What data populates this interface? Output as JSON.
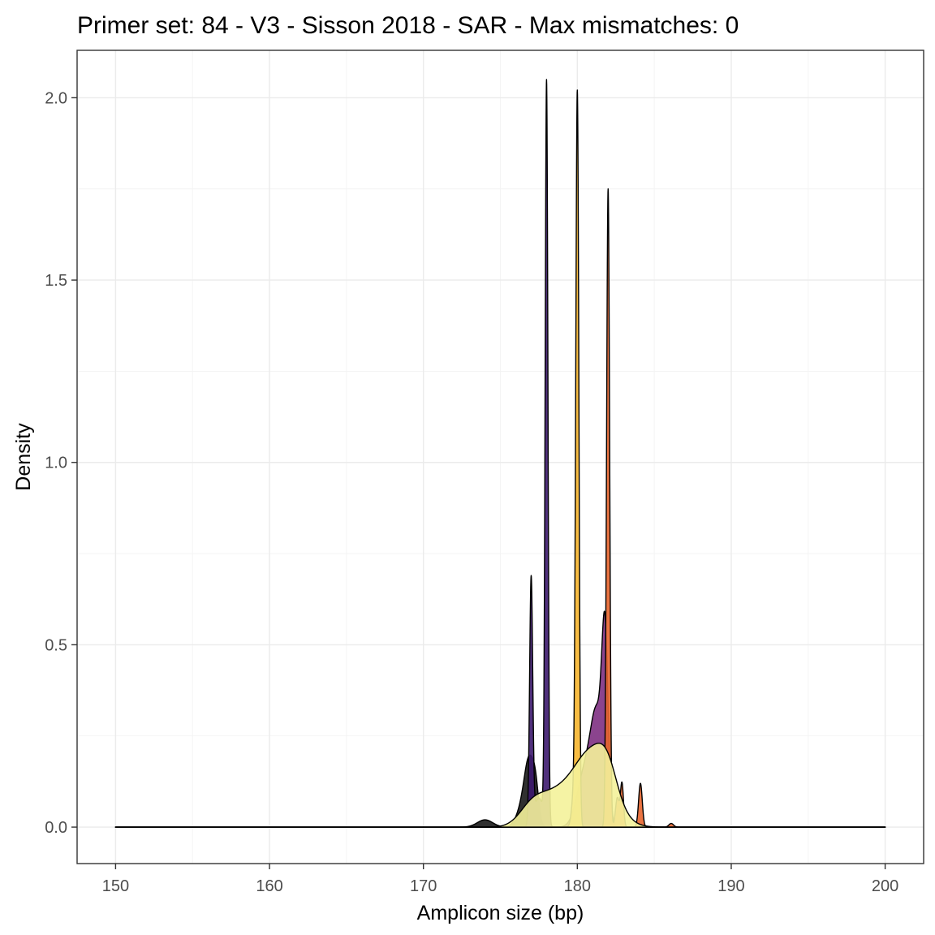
{
  "chart_data": {
    "type": "area",
    "title": "Primer set: 84 - V3 - Sisson 2018 - SAR - Max mismatches: 0",
    "xlabel": "Amplicon size (bp)",
    "ylabel": "Density",
    "xlim": [
      147.5,
      202.5
    ],
    "ylim": [
      -0.1,
      2.13
    ],
    "x_ticks": [
      150,
      160,
      170,
      180,
      190,
      200
    ],
    "x_tick_labels": [
      "150",
      "160",
      "170",
      "180",
      "190",
      "200"
    ],
    "y_ticks": [
      0.0,
      0.5,
      1.0,
      1.5,
      2.0
    ],
    "y_tick_labels": [
      "0.0",
      "0.5",
      "1.0",
      "1.5",
      "2.0"
    ],
    "grid": true,
    "legend": "none",
    "x_range": [
      150,
      200
    ],
    "series": [
      {
        "color": "#1a1a1a",
        "opacity": 0.9,
        "peaks": [
          {
            "center": 174.0,
            "height": 0.02,
            "width": 0.5
          },
          {
            "center": 176.9,
            "height": 0.15,
            "width": 0.3
          },
          {
            "center": 177.3,
            "height": 0.08,
            "width": 0.2
          },
          {
            "center": 176.5,
            "height": 0.06,
            "width": 0.4
          }
        ]
      },
      {
        "color": "#3d1a6e",
        "opacity": 0.9,
        "peaks": [
          {
            "center": 177.0,
            "height": 0.67,
            "width": 0.1
          },
          {
            "center": 178.0,
            "height": 2.03,
            "width": 0.09
          },
          {
            "center": 177.5,
            "height": 0.08,
            "width": 0.3
          }
        ]
      },
      {
        "color": "#7b2a7e",
        "opacity": 0.88,
        "peaks": [
          {
            "center": 181.3,
            "height": 0.28,
            "width": 0.4
          },
          {
            "center": 181.8,
            "height": 0.45,
            "width": 0.2
          },
          {
            "center": 180.5,
            "height": 0.15,
            "width": 0.5
          }
        ]
      },
      {
        "color": "#e8652e",
        "opacity": 0.9,
        "peaks": [
          {
            "center": 182.0,
            "height": 1.75,
            "width": 0.1
          },
          {
            "center": 182.6,
            "height": 0.08,
            "width": 0.12
          },
          {
            "center": 182.9,
            "height": 0.12,
            "width": 0.1
          },
          {
            "center": 184.1,
            "height": 0.12,
            "width": 0.12
          },
          {
            "center": 186.1,
            "height": 0.01,
            "width": 0.15
          }
        ]
      },
      {
        "color": "#f7b733",
        "opacity": 0.92,
        "peaks": [
          {
            "center": 180.0,
            "height": 1.98,
            "width": 0.1
          },
          {
            "center": 179.8,
            "height": 0.1,
            "width": 0.15
          }
        ]
      },
      {
        "color": "#f4f29a",
        "opacity": 0.9,
        "peaks": [
          {
            "center": 181.0,
            "height": 0.2,
            "width": 1.2
          },
          {
            "center": 178.5,
            "height": 0.08,
            "width": 1.2
          },
          {
            "center": 177.0,
            "height": 0.04,
            "width": 0.8
          },
          {
            "center": 182.0,
            "height": 0.06,
            "width": 0.6
          }
        ]
      }
    ]
  }
}
